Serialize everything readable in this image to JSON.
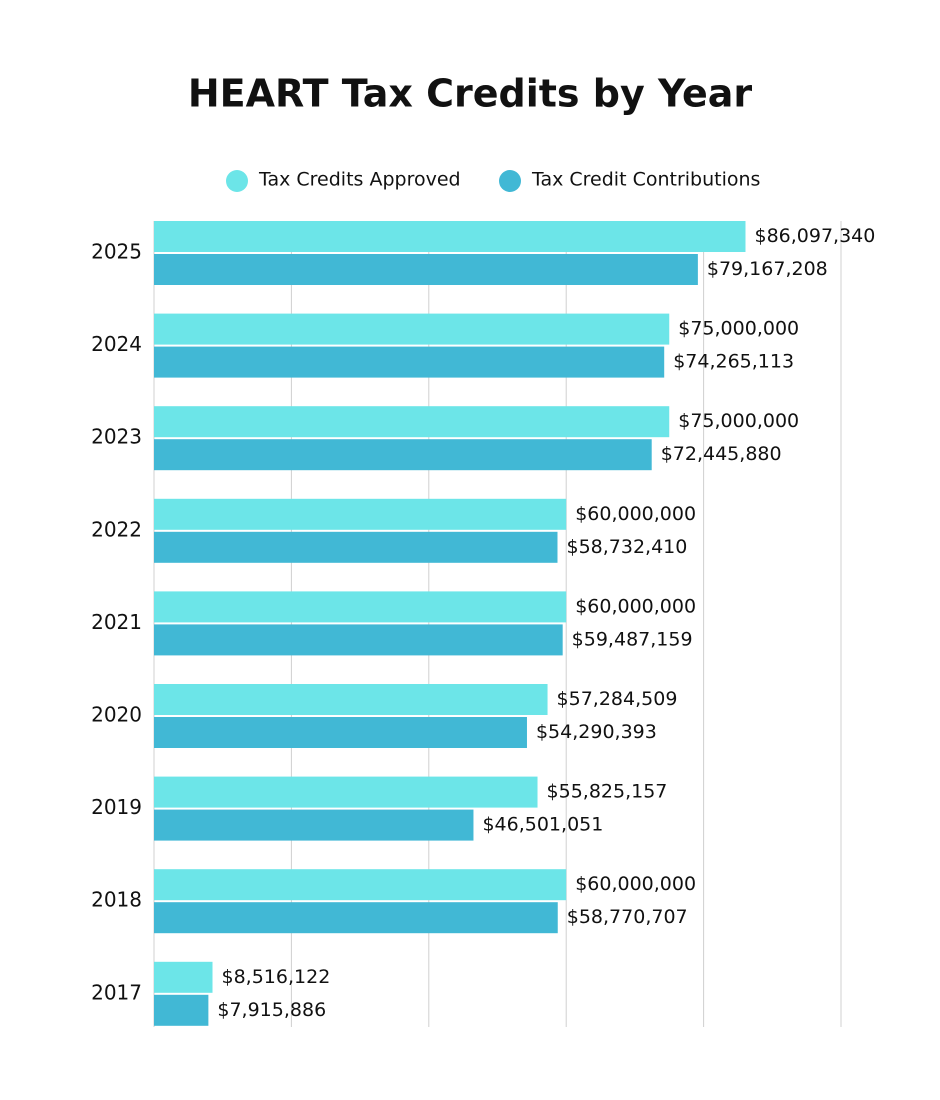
{
  "chart_data": {
    "type": "hbar",
    "title": "HEART Tax Credits by Year",
    "categories": [
      "2025",
      "2024",
      "2023",
      "2022",
      "2021",
      "2020",
      "2019",
      "2018",
      "2017"
    ],
    "series": [
      {
        "name": "Tax Credits Approved",
        "color": "#6ce5e8",
        "values": [
          86097340,
          75000000,
          75000000,
          60000000,
          60000000,
          57284509,
          55825157,
          60000000,
          8516122
        ],
        "value_labels": [
          "$86,097,340",
          "$75,000,000",
          "$75,000,000",
          "$60,000,000",
          "$60,000,000",
          "$57,284,509",
          "$55,825,157",
          "$60,000,000",
          "$8,516,122"
        ]
      },
      {
        "name": "Tax Credit Contributions",
        "color": "#41b8d5",
        "values": [
          79167208,
          74265113,
          72445880,
          58732410,
          59487159,
          54290393,
          46501051,
          58770707,
          7915886
        ],
        "value_labels": [
          "$79,167,208",
          "$74,265,113",
          "$72,445,880",
          "$58,732,410",
          "$59,487,159",
          "$54,290,393",
          "$46,501,051",
          "$58,770,707",
          "$7,915,886"
        ]
      }
    ],
    "xlim": [
      0,
      100000000
    ],
    "xticks": [
      0,
      20000000,
      40000000,
      60000000,
      80000000,
      100000000
    ],
    "grid": true
  }
}
